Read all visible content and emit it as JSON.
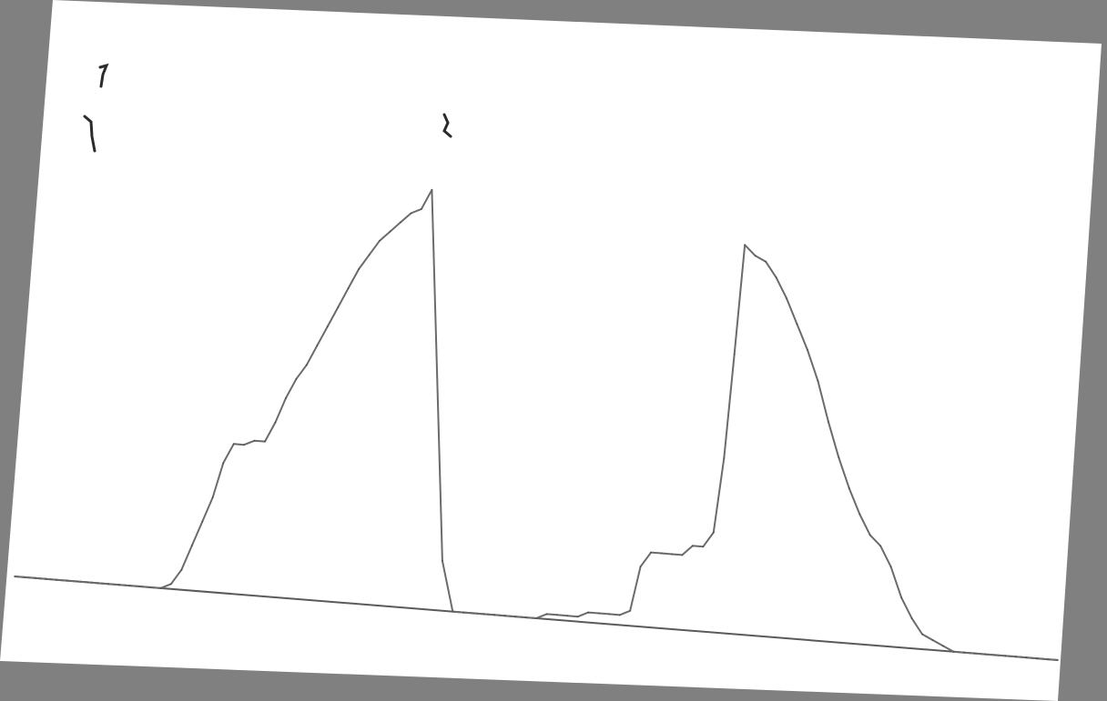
{
  "colors": {
    "background": "#808080",
    "paper": "#ffffff",
    "trace": "#6b6b6b",
    "trace_dark": "#4a4a4a",
    "baseline": "#5a5a5a",
    "ink_mark": "#2b2b2b"
  },
  "chart_data": {
    "type": "line",
    "title": "",
    "xlabel": "",
    "ylabel": "",
    "grid": false,
    "legend": "none",
    "xlim": [
      0,
      100
    ],
    "ylim": [
      0,
      100
    ],
    "series": [
      {
        "x": [
          0,
          1,
          2,
          3,
          4,
          5,
          6,
          7,
          8,
          9,
          10,
          11,
          12,
          13,
          14,
          15,
          16,
          17,
          18,
          19,
          20,
          21,
          22,
          23,
          24,
          25,
          26,
          27,
          28,
          29,
          30,
          31,
          32,
          33,
          34,
          35,
          36,
          37,
          38,
          39,
          40,
          41,
          42,
          43,
          44,
          45,
          46,
          47,
          48,
          49,
          50,
          51,
          52,
          53,
          54,
          55,
          56,
          57,
          58,
          59,
          60,
          61,
          62,
          63,
          64,
          65,
          66,
          67,
          68,
          69,
          70,
          71,
          72,
          73,
          74,
          75,
          76,
          77,
          78,
          79,
          80,
          81,
          82,
          83,
          84,
          85,
          86,
          87,
          88,
          89,
          90,
          91,
          92,
          93,
          94,
          95,
          96,
          97,
          98,
          99,
          100
        ],
        "y": [
          0,
          0,
          0,
          0,
          0,
          0,
          0,
          0,
          0,
          0,
          0,
          0,
          0,
          0,
          0,
          1,
          4,
          9,
          14,
          19,
          26,
          30,
          30,
          31,
          31,
          35,
          40,
          44,
          47,
          51,
          55,
          59,
          63,
          67,
          70,
          73,
          75,
          77,
          79,
          80,
          84,
          10,
          0,
          0,
          0,
          0,
          0,
          0,
          0,
          0,
          0,
          1,
          1,
          1,
          1,
          2,
          2,
          2,
          2,
          3,
          12,
          15,
          15,
          15,
          15,
          17,
          17,
          20,
          35,
          56,
          78,
          76,
          75,
          72,
          68,
          63,
          58,
          52,
          44,
          37,
          31,
          26,
          22,
          20,
          16,
          10,
          6,
          3,
          2,
          1,
          0,
          0,
          0,
          0,
          0,
          0,
          0,
          0,
          0,
          0,
          0
        ]
      }
    ]
  }
}
